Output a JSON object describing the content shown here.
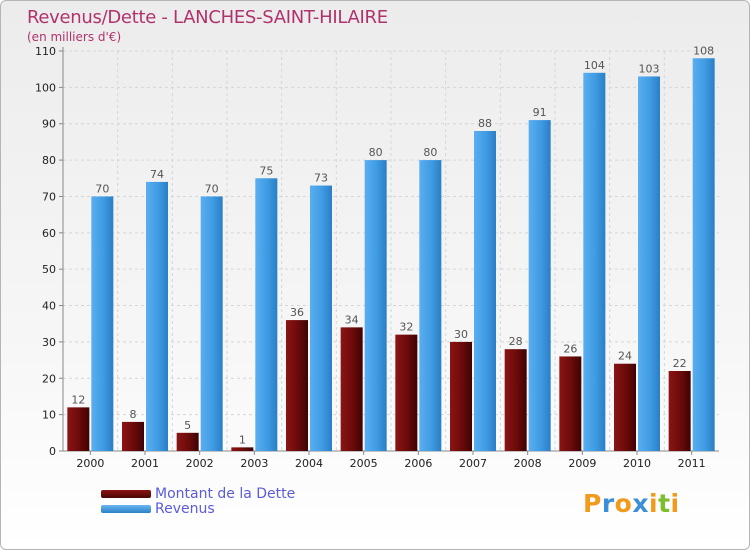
{
  "title": "Revenus/Dette - LANCHES-SAINT-HILAIRE",
  "subtitle": "(en milliers d'€)",
  "logo": {
    "text": "Proxiti",
    "letter_colors": [
      "#f29a1b",
      "#3a8fd6",
      "#f29a1b",
      "#3a8fd6",
      "#f29a1b",
      "#7cbf2a",
      "#f29a1b"
    ]
  },
  "chart_data": {
    "type": "bar",
    "categories": [
      "2000",
      "2001",
      "2002",
      "2003",
      "2004",
      "2005",
      "2006",
      "2007",
      "2008",
      "2009",
      "2010",
      "2011"
    ],
    "series": [
      {
        "name": "Montant de la Dette",
        "color": "#6b0a0a",
        "values": [
          12,
          8,
          5,
          1,
          36,
          34,
          32,
          30,
          28,
          26,
          24,
          22
        ]
      },
      {
        "name": "Revenus",
        "color": "#3f9be3",
        "values": [
          70,
          74,
          70,
          75,
          73,
          80,
          80,
          88,
          91,
          104,
          103,
          108
        ]
      }
    ],
    "ylim": [
      0,
      110
    ],
    "yticks": [
      0,
      10,
      20,
      30,
      40,
      50,
      60,
      70,
      80,
      90,
      100,
      110
    ],
    "grid": true,
    "legend_position": "bottom-left"
  }
}
